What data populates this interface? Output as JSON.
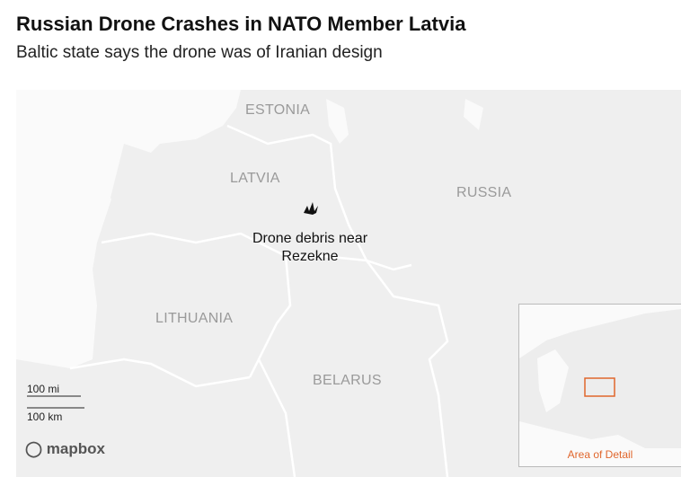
{
  "header": {
    "title": "Russian Drone Crashes in NATO Member Latvia",
    "subtitle": "Baltic state says the drone was of Iranian design"
  },
  "map": {
    "labels": {
      "estonia": "ESTONIA",
      "latvia": "LATVIA",
      "russia": "RUSSIA",
      "lithuania": "LITHUANIA",
      "belarus": "BELARUS"
    },
    "annotation": "Drone debris near Rezekne",
    "scale": {
      "miles": "100 mi",
      "km": "100 km"
    },
    "attribution": "mapbox",
    "inset": {
      "label": "Area of Detail"
    }
  }
}
